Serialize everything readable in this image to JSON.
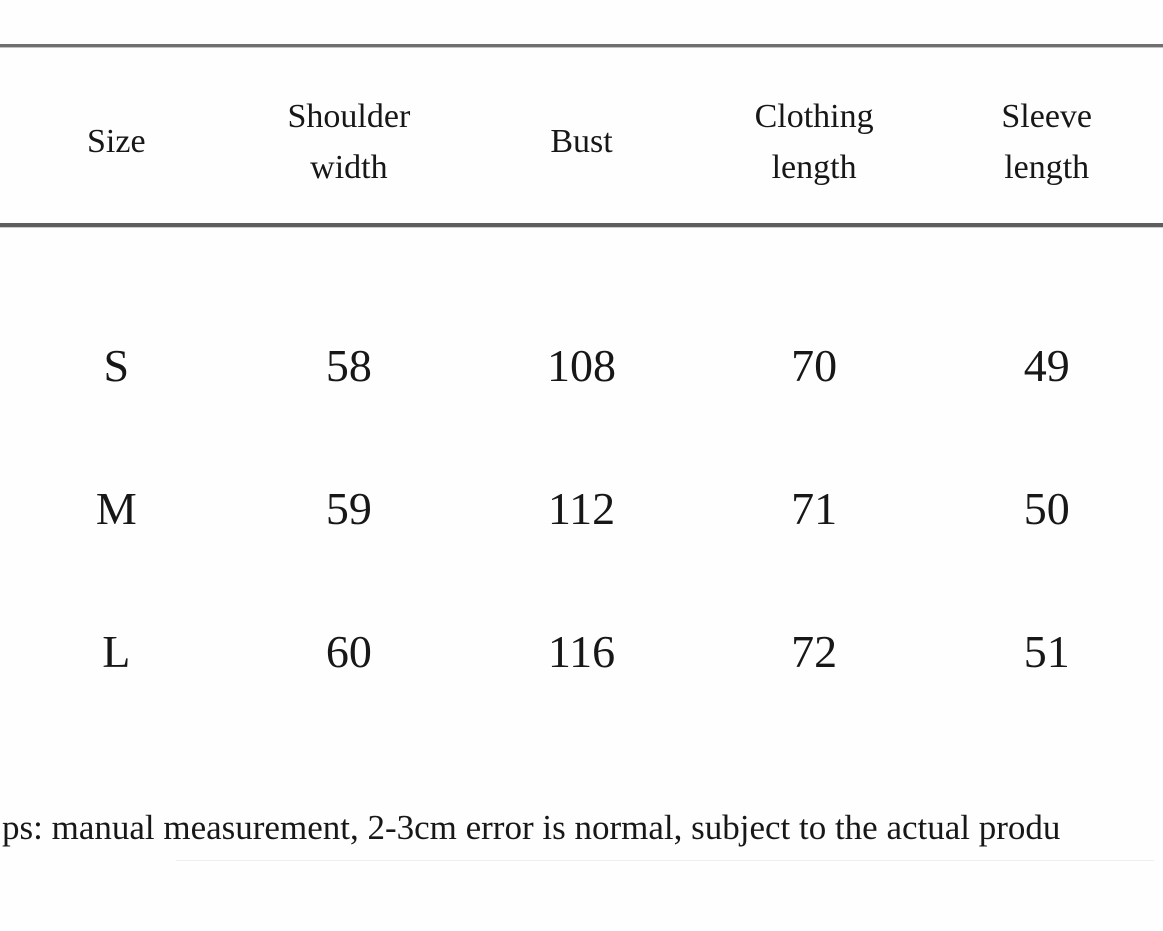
{
  "table": {
    "columns": [
      "Size",
      "Shoulder\nwidth",
      "Bust",
      "Clothing\nlength",
      "Sleeve\nlength"
    ],
    "rows": [
      {
        "cells": [
          "S",
          "58",
          "108",
          "70",
          "49"
        ]
      },
      {
        "cells": [
          "M",
          "59",
          "112",
          "71",
          "50"
        ]
      },
      {
        "cells": [
          "L",
          "60",
          "116",
          "72",
          "51"
        ]
      }
    ]
  },
  "note": {
    "text": "ps: manual measurement, 2-3cm error is normal, subject to the actual produ"
  },
  "colors": {
    "top_rule": "#6f6f6f",
    "header_rule": "#5d5d5d",
    "text": "#171717",
    "background": "#fefefe"
  }
}
